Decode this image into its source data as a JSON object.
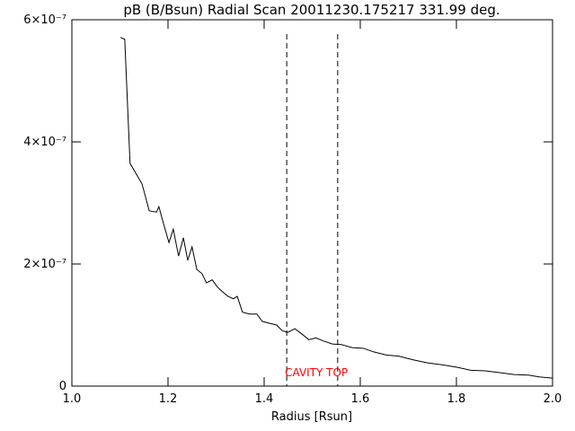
{
  "chart_data": {
    "type": "line",
    "title": "pB (B/Bsun) Radial Scan 20011230.175217 331.99 deg.",
    "x_label": "Radius [Rsun]",
    "x": [
      1.101,
      1.11,
      1.121,
      1.135,
      1.146,
      1.161,
      1.176,
      1.181,
      1.191,
      1.202,
      1.211,
      1.222,
      1.232,
      1.241,
      1.25,
      1.26,
      1.271,
      1.28,
      1.292,
      1.303,
      1.314,
      1.325,
      1.336,
      1.344,
      1.355,
      1.37,
      1.385,
      1.396,
      1.411,
      1.426,
      1.437,
      1.449,
      1.464,
      1.479,
      1.493,
      1.508,
      1.523,
      1.542,
      1.561,
      1.583,
      1.606,
      1.628,
      1.654,
      1.68,
      1.71,
      1.74,
      1.77,
      1.8,
      1.83,
      1.86,
      1.89,
      1.92,
      1.95,
      1.972,
      2.0
    ],
    "series": [
      {
        "color": "#000000",
        "values": [
          5.71e-07,
          5.68e-07,
          3.65e-07,
          3.46e-07,
          3.31e-07,
          2.87e-07,
          2.85e-07,
          2.94e-07,
          2.65e-07,
          2.35e-07,
          2.57e-07,
          2.13e-07,
          2.43e-07,
          2.06e-07,
          2.28e-07,
          1.91e-07,
          1.84e-07,
          1.69e-07,
          1.74e-07,
          1.62e-07,
          1.54e-07,
          1.47e-07,
          1.43e-07,
          1.47e-07,
          1.21e-07,
          1.18e-07,
          1.18e-07,
          1.06e-07,
          1.03e-07,
          1e-07,
          9.1e-08,
          8.8e-08,
          9.4e-08,
          8.5e-08,
          7.6e-08,
          7.9e-08,
          7.4e-08,
          6.9e-08,
          6.8e-08,
          6.3e-08,
          6.2e-08,
          5.6e-08,
          5.1e-08,
          4.9e-08,
          4.3e-08,
          3.8e-08,
          3.5e-08,
          3.1e-08,
          2.6e-08,
          2.5e-08,
          2.2e-08,
          1.9e-08,
          1.8e-08,
          1.5e-08,
          1.3e-08
        ]
      }
    ],
    "xlim": [
      1.0,
      2.0
    ],
    "xticks": [
      {
        "value": 1.0,
        "label": "1.0"
      },
      1.2,
      1.4,
      1.6,
      1.8,
      {
        "value": 2.0,
        "label": "2.0"
      }
    ],
    "ylim": [
      0,
      6e-07
    ],
    "yticks": [
      0,
      {
        "value": 2e-07,
        "label": "2×10⁻⁷"
      },
      {
        "value": 4e-07,
        "label": "4×10⁻⁷"
      },
      {
        "value": 6e-07,
        "label": "6×10⁻⁷"
      }
    ],
    "vlines": [
      1.447,
      1.553
    ],
    "annotation": {
      "text": "CAVITY TOP",
      "color": "#ff0000"
    }
  }
}
